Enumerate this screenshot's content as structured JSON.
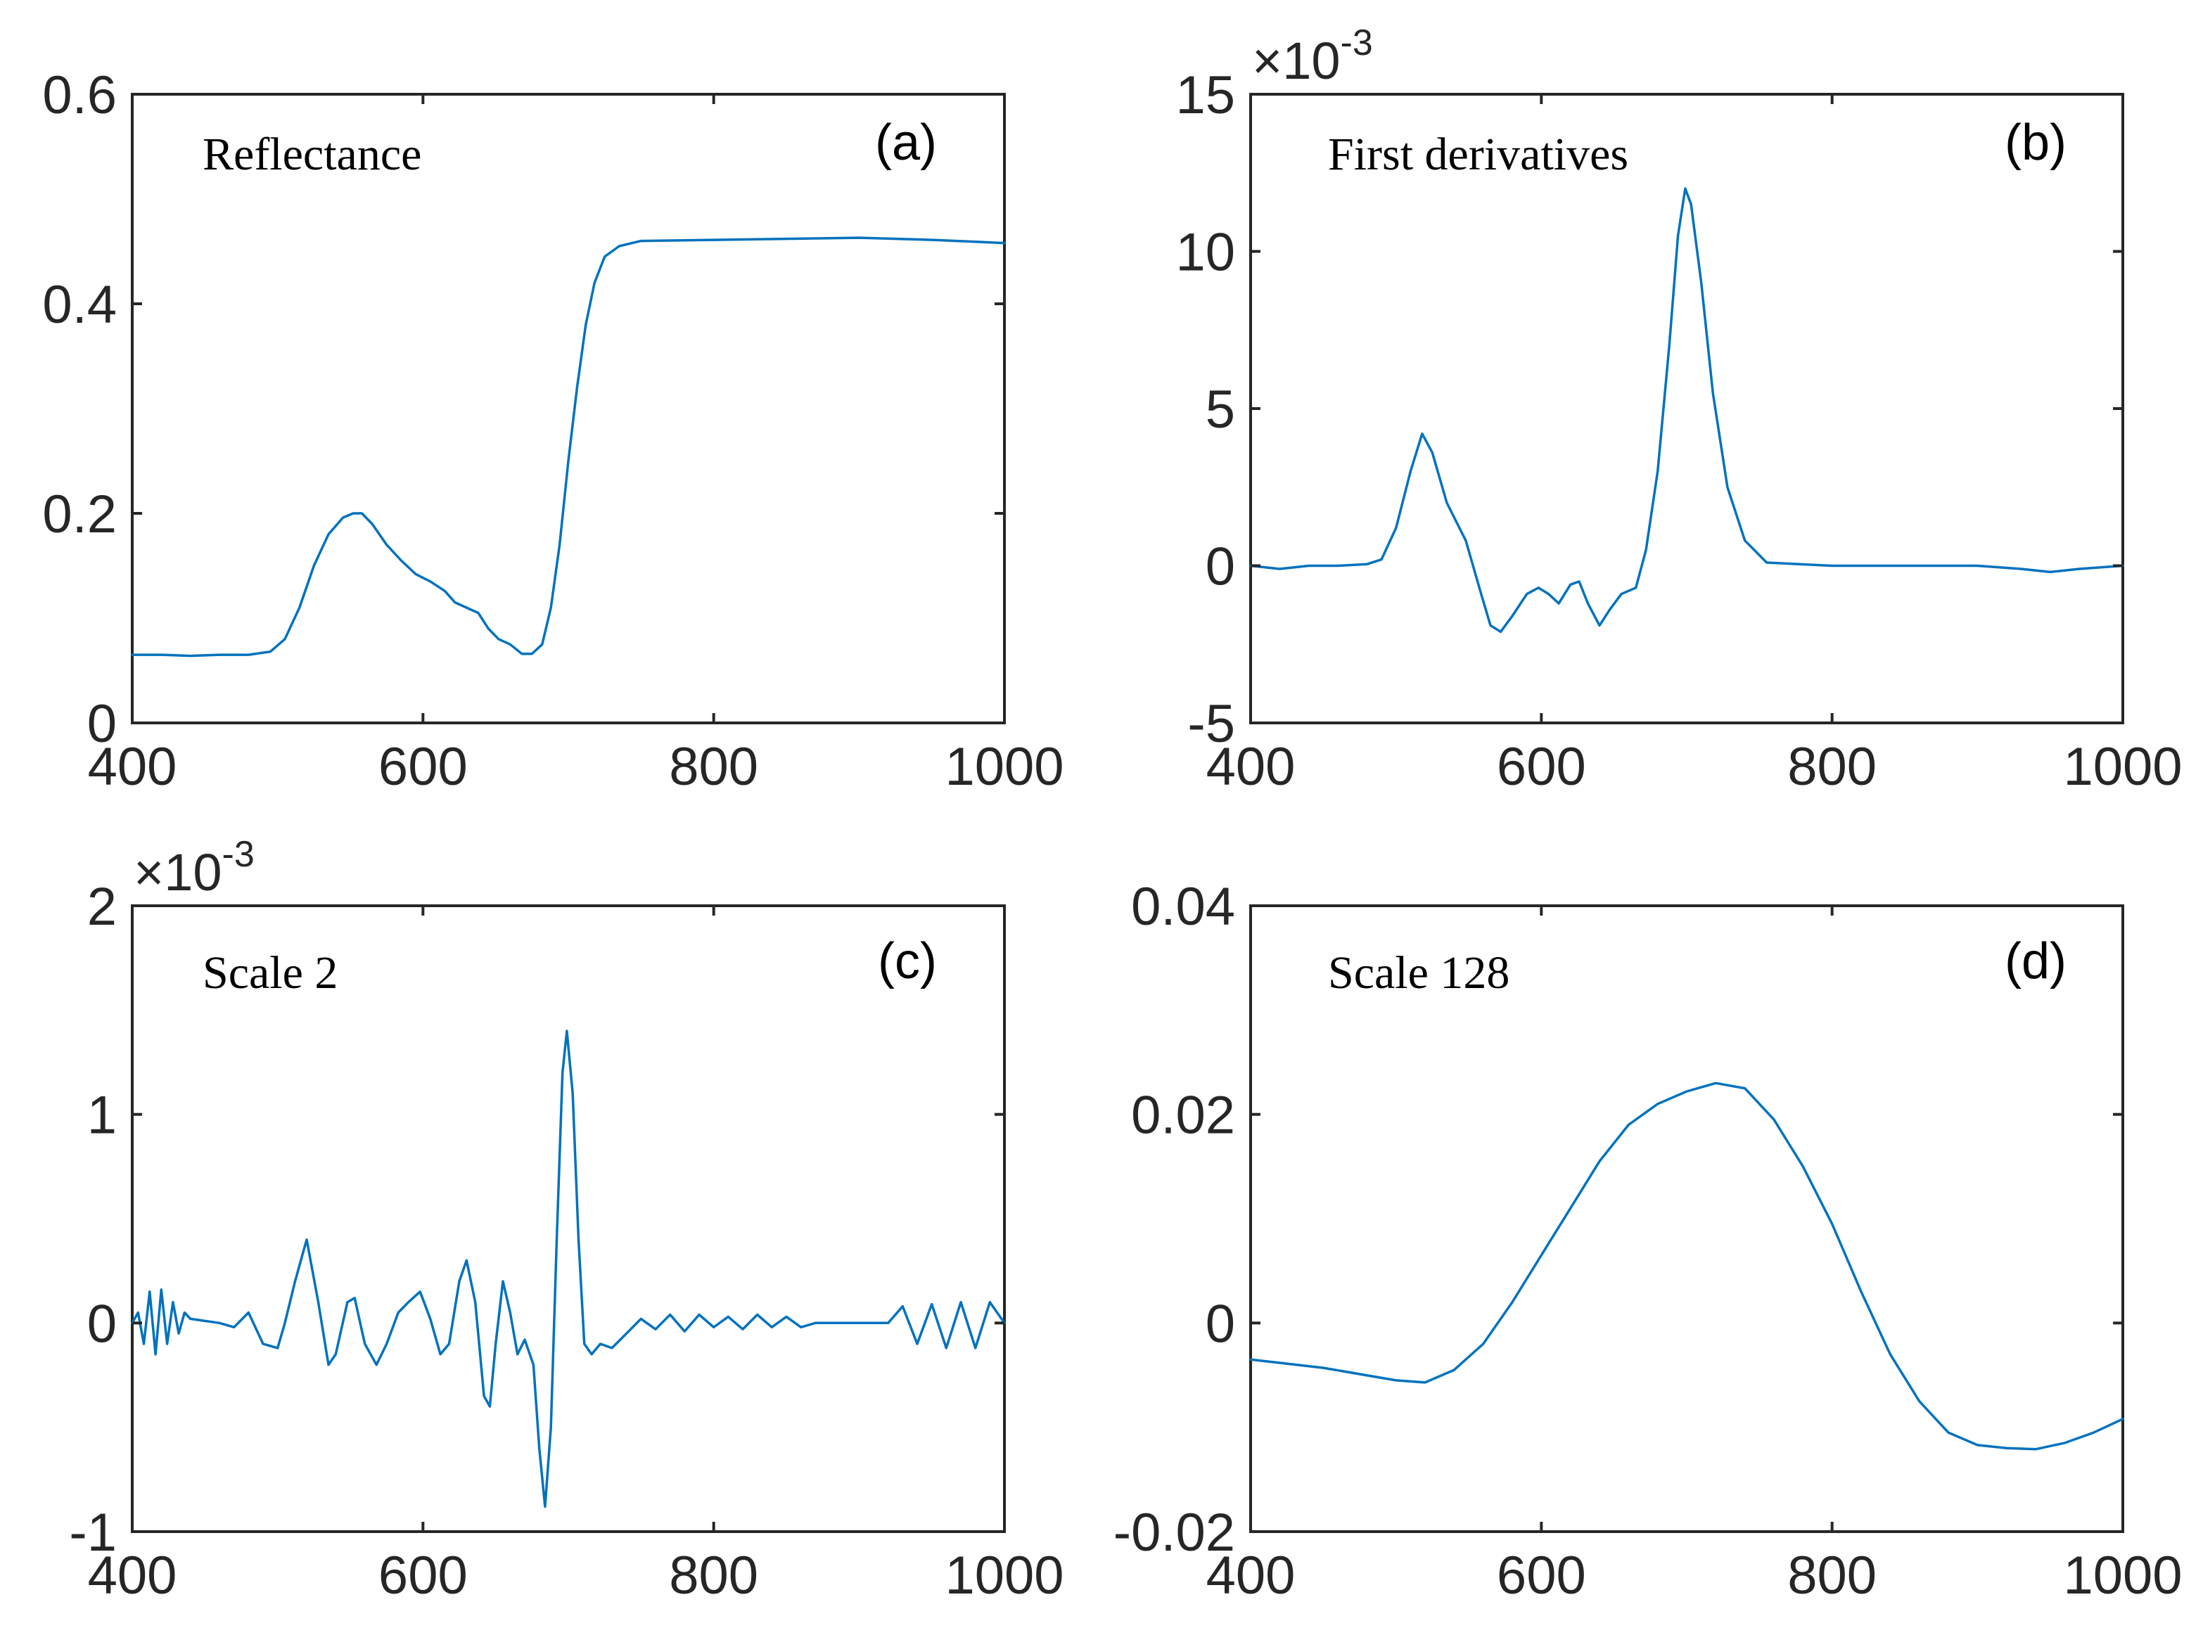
{
  "accent_color": "#0072BD",
  "chart_data": [
    {
      "id": "a",
      "type": "line",
      "panel_label": "(a)",
      "annotation": "Reflectance",
      "xlim": [
        400,
        1000
      ],
      "ylim": [
        0,
        0.6
      ],
      "x_ticks": [
        400,
        600,
        800,
        1000
      ],
      "x_tick_labels": [
        "400",
        "600",
        "800",
        "1000"
      ],
      "y_ticks": [
        0,
        0.2,
        0.4,
        0.6
      ],
      "y_tick_labels": [
        "0",
        "0.2",
        "0.4",
        "0.6"
      ],
      "exponent_label": "",
      "series": [
        {
          "name": "Reflectance",
          "points": [
            [
              400,
              0.065
            ],
            [
              420,
              0.065
            ],
            [
              440,
              0.064
            ],
            [
              460,
              0.065
            ],
            [
              480,
              0.065
            ],
            [
              495,
              0.068
            ],
            [
              505,
              0.08
            ],
            [
              515,
              0.11
            ],
            [
              525,
              0.15
            ],
            [
              535,
              0.18
            ],
            [
              545,
              0.196
            ],
            [
              552,
              0.2
            ],
            [
              558,
              0.2
            ],
            [
              565,
              0.19
            ],
            [
              575,
              0.17
            ],
            [
              585,
              0.155
            ],
            [
              595,
              0.142
            ],
            [
              605,
              0.135
            ],
            [
              615,
              0.126
            ],
            [
              622,
              0.115
            ],
            [
              630,
              0.11
            ],
            [
              638,
              0.105
            ],
            [
              645,
              0.09
            ],
            [
              652,
              0.08
            ],
            [
              660,
              0.075
            ],
            [
              668,
              0.066
            ],
            [
              675,
              0.066
            ],
            [
              682,
              0.075
            ],
            [
              688,
              0.11
            ],
            [
              694,
              0.17
            ],
            [
              700,
              0.25
            ],
            [
              706,
              0.32
            ],
            [
              712,
              0.38
            ],
            [
              718,
              0.42
            ],
            [
              725,
              0.445
            ],
            [
              735,
              0.455
            ],
            [
              750,
              0.46
            ],
            [
              800,
              0.461
            ],
            [
              850,
              0.462
            ],
            [
              900,
              0.463
            ],
            [
              950,
              0.461
            ],
            [
              1000,
              0.458
            ]
          ]
        }
      ]
    },
    {
      "id": "b",
      "type": "line",
      "panel_label": "(b)",
      "annotation": "First derivatives",
      "xlim": [
        400,
        1000
      ],
      "ylim": [
        -5,
        15
      ],
      "x_ticks": [
        400,
        600,
        800,
        1000
      ],
      "x_tick_labels": [
        "400",
        "600",
        "800",
        "1000"
      ],
      "y_ticks": [
        -5,
        0,
        5,
        10,
        15
      ],
      "y_tick_labels": [
        "-5",
        "0",
        "5",
        "10",
        "15"
      ],
      "exponent_label": "×10",
      "exponent_power": "-3",
      "series": [
        {
          "name": "First derivatives (×10^-3)",
          "points": [
            [
              400,
              0
            ],
            [
              420,
              -0.1
            ],
            [
              440,
              0
            ],
            [
              460,
              0
            ],
            [
              480,
              0.05
            ],
            [
              490,
              0.2
            ],
            [
              500,
              1.2
            ],
            [
              510,
              3
            ],
            [
              518,
              4.2
            ],
            [
              525,
              3.6
            ],
            [
              535,
              2
            ],
            [
              548,
              0.8
            ],
            [
              558,
              -0.8
            ],
            [
              565,
              -1.9
            ],
            [
              572,
              -2.1
            ],
            [
              580,
              -1.6
            ],
            [
              590,
              -0.9
            ],
            [
              598,
              -0.7
            ],
            [
              605,
              -0.9
            ],
            [
              612,
              -1.2
            ],
            [
              620,
              -0.6
            ],
            [
              626,
              -0.5
            ],
            [
              632,
              -1.2
            ],
            [
              640,
              -1.9
            ],
            [
              647,
              -1.4
            ],
            [
              655,
              -0.9
            ],
            [
              665,
              -0.7
            ],
            [
              672,
              0.5
            ],
            [
              680,
              3
            ],
            [
              688,
              7
            ],
            [
              694,
              10.5
            ],
            [
              699,
              12
            ],
            [
              703,
              11.5
            ],
            [
              710,
              9
            ],
            [
              718,
              5.5
            ],
            [
              728,
              2.5
            ],
            [
              740,
              0.8
            ],
            [
              755,
              0.1
            ],
            [
              800,
              0
            ],
            [
              850,
              0
            ],
            [
              900,
              0
            ],
            [
              930,
              -0.1
            ],
            [
              950,
              -0.2
            ],
            [
              970,
              -0.1
            ],
            [
              1000,
              0
            ]
          ]
        }
      ]
    },
    {
      "id": "c",
      "type": "line",
      "panel_label": "(c)",
      "annotation": "Scale 2",
      "xlim": [
        400,
        1000
      ],
      "ylim": [
        -1,
        2
      ],
      "x_ticks": [
        400,
        600,
        800,
        1000
      ],
      "x_tick_labels": [
        "400",
        "600",
        "800",
        "1000"
      ],
      "y_ticks": [
        -1,
        0,
        1,
        2
      ],
      "y_tick_labels": [
        "-1",
        "0",
        "1",
        "2"
      ],
      "exponent_label": "×10",
      "exponent_power": "-3",
      "series": [
        {
          "name": "Scale 2 (×10^-3)",
          "points": [
            [
              400,
              0
            ],
            [
              404,
              0.05
            ],
            [
              408,
              -0.1
            ],
            [
              412,
              0.15
            ],
            [
              416,
              -0.15
            ],
            [
              420,
              0.16
            ],
            [
              424,
              -0.1
            ],
            [
              428,
              0.1
            ],
            [
              432,
              -0.05
            ],
            [
              436,
              0.05
            ],
            [
              440,
              0.02
            ],
            [
              450,
              0.01
            ],
            [
              460,
              0
            ],
            [
              470,
              -0.02
            ],
            [
              480,
              0.05
            ],
            [
              490,
              -0.1
            ],
            [
              500,
              -0.12
            ],
            [
              505,
              0
            ],
            [
              512,
              0.2
            ],
            [
              520,
              0.4
            ],
            [
              528,
              0.1
            ],
            [
              535,
              -0.2
            ],
            [
              540,
              -0.15
            ],
            [
              548,
              0.1
            ],
            [
              553,
              0.12
            ],
            [
              560,
              -0.1
            ],
            [
              568,
              -0.2
            ],
            [
              575,
              -0.1
            ],
            [
              583,
              0.05
            ],
            [
              590,
              0.1
            ],
            [
              598,
              0.15
            ],
            [
              605,
              0.02
            ],
            [
              612,
              -0.15
            ],
            [
              618,
              -0.1
            ],
            [
              625,
              0.2
            ],
            [
              630,
              0.3
            ],
            [
              636,
              0.1
            ],
            [
              642,
              -0.35
            ],
            [
              646,
              -0.4
            ],
            [
              650,
              -0.1
            ],
            [
              655,
              0.2
            ],
            [
              660,
              0.05
            ],
            [
              665,
              -0.15
            ],
            [
              670,
              -0.08
            ],
            [
              676,
              -0.2
            ],
            [
              680,
              -0.6
            ],
            [
              684,
              -0.88
            ],
            [
              688,
              -0.5
            ],
            [
              692,
              0.4
            ],
            [
              696,
              1.2
            ],
            [
              699,
              1.4
            ],
            [
              703,
              1.1
            ],
            [
              707,
              0.4
            ],
            [
              711,
              -0.1
            ],
            [
              716,
              -0.15
            ],
            [
              722,
              -0.1
            ],
            [
              730,
              -0.12
            ],
            [
              740,
              -0.05
            ],
            [
              750,
              0.02
            ],
            [
              760,
              -0.03
            ],
            [
              770,
              0.04
            ],
            [
              780,
              -0.04
            ],
            [
              790,
              0.04
            ],
            [
              800,
              -0.02
            ],
            [
              810,
              0.03
            ],
            [
              820,
              -0.03
            ],
            [
              830,
              0.04
            ],
            [
              840,
              -0.02
            ],
            [
              850,
              0.03
            ],
            [
              860,
              -0.02
            ],
            [
              870,
              0
            ],
            [
              880,
              0
            ],
            [
              900,
              0
            ],
            [
              920,
              0
            ],
            [
              930,
              0.08
            ],
            [
              940,
              -0.1
            ],
            [
              950,
              0.09
            ],
            [
              960,
              -0.12
            ],
            [
              970,
              0.1
            ],
            [
              980,
              -0.12
            ],
            [
              990,
              0.1
            ],
            [
              1000,
              0
            ]
          ]
        }
      ]
    },
    {
      "id": "d",
      "type": "line",
      "panel_label": "(d)",
      "annotation": "Scale 128",
      "xlim": [
        400,
        1000
      ],
      "ylim": [
        -0.02,
        0.04
      ],
      "x_ticks": [
        400,
        600,
        800,
        1000
      ],
      "x_tick_labels": [
        "400",
        "600",
        "800",
        "1000"
      ],
      "y_ticks": [
        -0.02,
        0,
        0.02,
        0.04
      ],
      "y_tick_labels": [
        "-0.02",
        "0",
        "0.02",
        "0.04"
      ],
      "exponent_label": "",
      "series": [
        {
          "name": "Scale 128",
          "points": [
            [
              400,
              -0.0035
            ],
            [
              450,
              -0.0043
            ],
            [
              500,
              -0.0055
            ],
            [
              520,
              -0.0057
            ],
            [
              540,
              -0.0045
            ],
            [
              560,
              -0.002
            ],
            [
              580,
              0.002
            ],
            [
              600,
              0.0065
            ],
            [
              620,
              0.011
            ],
            [
              640,
              0.0155
            ],
            [
              660,
              0.019
            ],
            [
              680,
              0.021
            ],
            [
              700,
              0.0222
            ],
            [
              720,
              0.023
            ],
            [
              740,
              0.0225
            ],
            [
              760,
              0.0195
            ],
            [
              780,
              0.015
            ],
            [
              800,
              0.0095
            ],
            [
              820,
              0.003
            ],
            [
              840,
              -0.003
            ],
            [
              860,
              -0.0075
            ],
            [
              880,
              -0.0105
            ],
            [
              900,
              -0.0117
            ],
            [
              920,
              -0.012
            ],
            [
              940,
              -0.0121
            ],
            [
              960,
              -0.0115
            ],
            [
              980,
              -0.0105
            ],
            [
              1000,
              -0.0092
            ]
          ]
        }
      ]
    }
  ]
}
